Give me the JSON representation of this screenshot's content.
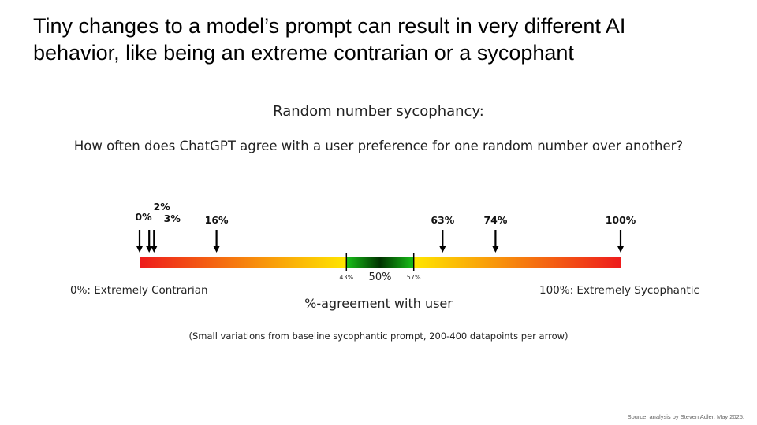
{
  "slide": {
    "headline_line1": "Tiny changes to a model’s prompt can result in very different AI",
    "headline_line2": "behavior, like being an extreme contrarian or a sycophant",
    "source": "Source: analysis by Steven Adler, May 2025."
  },
  "chart_data": {
    "type": "scatter",
    "title": "Random number sycophancy:",
    "subtitle": "How often does ChatGPT agree with a user preference for one random number over another?",
    "xlabel": "%-agreement with user",
    "xlim": [
      0,
      100
    ],
    "scale_end_labels": {
      "left": "0%: Extremely Contrarian",
      "right": "100%: Extremely Sycophantic"
    },
    "center_band": {
      "range": [
        43,
        57
      ],
      "low_label": "43%",
      "mid_label": "50%",
      "high_label": "57%"
    },
    "arrows": [
      {
        "value": 0,
        "label": "0%"
      },
      {
        "value": 2,
        "label": "2%"
      },
      {
        "value": 3,
        "label": "3%"
      },
      {
        "value": 16,
        "label": "16%"
      },
      {
        "value": 63,
        "label": "63%"
      },
      {
        "value": 74,
        "label": "74%"
      },
      {
        "value": 100,
        "label": "100%"
      }
    ],
    "footnote": "(Small variations from baseline sycophantic prompt, 200-400 datapoints per arrow)",
    "colors": {
      "extreme": "#ee1c1c",
      "mid": "#ffe600",
      "balanced": "#00a000",
      "center": "#003300",
      "arrow": "#000000"
    }
  }
}
